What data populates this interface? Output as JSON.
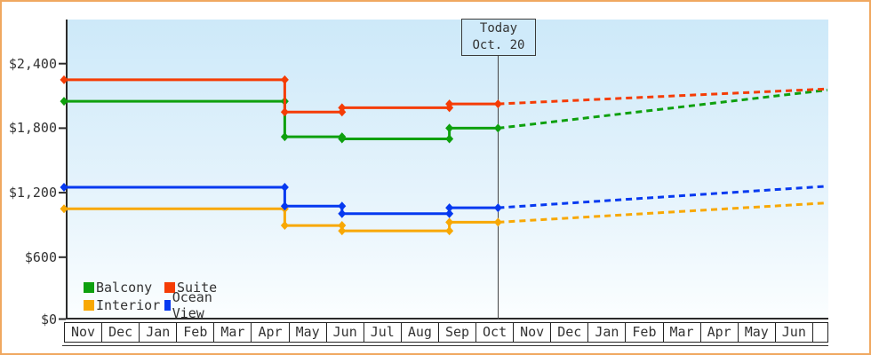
{
  "chart_data": {
    "type": "line",
    "description": "Cruise cabin price history with dashed price forecast after today marker",
    "y_axis": {
      "tick_values": [
        0,
        600,
        1200,
        1800,
        2400
      ],
      "tick_labels": [
        "$0",
        "$600",
        "$1,200",
        "$1,800",
        "$2,400"
      ],
      "range": [
        0,
        2800
      ],
      "grid": false
    },
    "x_axis": {
      "month_labels": [
        "Nov",
        "Dec",
        "Jan",
        "Feb",
        "Mar",
        "Apr",
        "May",
        "Jun",
        "Jul",
        "Aug",
        "Sep",
        "Oct",
        "Nov",
        "Dec",
        "Jan",
        "Feb",
        "Mar",
        "Apr",
        "May",
        "Jun"
      ]
    },
    "today_marker": {
      "line1": "Today",
      "line2": "Oct. 20",
      "month_position": 11.6
    },
    "legend": {
      "rows": [
        [
          "Balcony",
          "Suite"
        ],
        [
          "Interior",
          "Ocean View"
        ]
      ],
      "position": "bottom-left-inside"
    },
    "series": [
      {
        "name": "Interior",
        "color": "#f8a804",
        "history": [
          [
            0,
            1050
          ],
          [
            5.9,
            1050
          ],
          [
            5.9,
            895
          ],
          [
            7.43,
            895
          ],
          [
            7.43,
            845
          ],
          [
            10.3,
            845
          ],
          [
            10.3,
            925
          ],
          [
            11.6,
            925
          ]
        ],
        "forecast": [
          [
            11.6,
            925
          ],
          [
            20.4,
            1105
          ]
        ]
      },
      {
        "name": "Ocean View",
        "color": "#0639f0",
        "history": [
          [
            0,
            1250
          ],
          [
            5.9,
            1250
          ],
          [
            5.9,
            1075
          ],
          [
            7.43,
            1075
          ],
          [
            7.43,
            1005
          ],
          [
            10.3,
            1005
          ],
          [
            10.3,
            1060
          ],
          [
            11.6,
            1060
          ]
        ],
        "forecast": [
          [
            11.6,
            1060
          ],
          [
            20.4,
            1260
          ]
        ]
      },
      {
        "name": "Balcony",
        "color": "#0ea00e",
        "history": [
          [
            0,
            2050
          ],
          [
            5.9,
            2050
          ],
          [
            5.9,
            1720
          ],
          [
            7.43,
            1720
          ],
          [
            7.43,
            1700
          ],
          [
            10.3,
            1700
          ],
          [
            10.3,
            1800
          ],
          [
            11.6,
            1800
          ]
        ],
        "forecast": [
          [
            11.6,
            1800
          ],
          [
            20.4,
            2155
          ]
        ]
      },
      {
        "name": "Suite",
        "color": "#f53c05",
        "history": [
          [
            0,
            2250
          ],
          [
            5.9,
            2250
          ],
          [
            5.9,
            1950
          ],
          [
            7.43,
            1950
          ],
          [
            7.43,
            1990
          ],
          [
            10.3,
            1990
          ],
          [
            10.3,
            2025
          ],
          [
            11.6,
            2025
          ]
        ],
        "forecast": [
          [
            11.6,
            2025
          ],
          [
            20.4,
            2165
          ]
        ]
      }
    ],
    "colors": {
      "frame_border": "#f0a860",
      "axis": "#2b2b2b",
      "text": "#333333",
      "today_line": "#444444",
      "plot_bg_top": "#cde9f9",
      "plot_bg_bottom": "#fbfeff",
      "month_cell_bg": "#ffffff"
    }
  }
}
